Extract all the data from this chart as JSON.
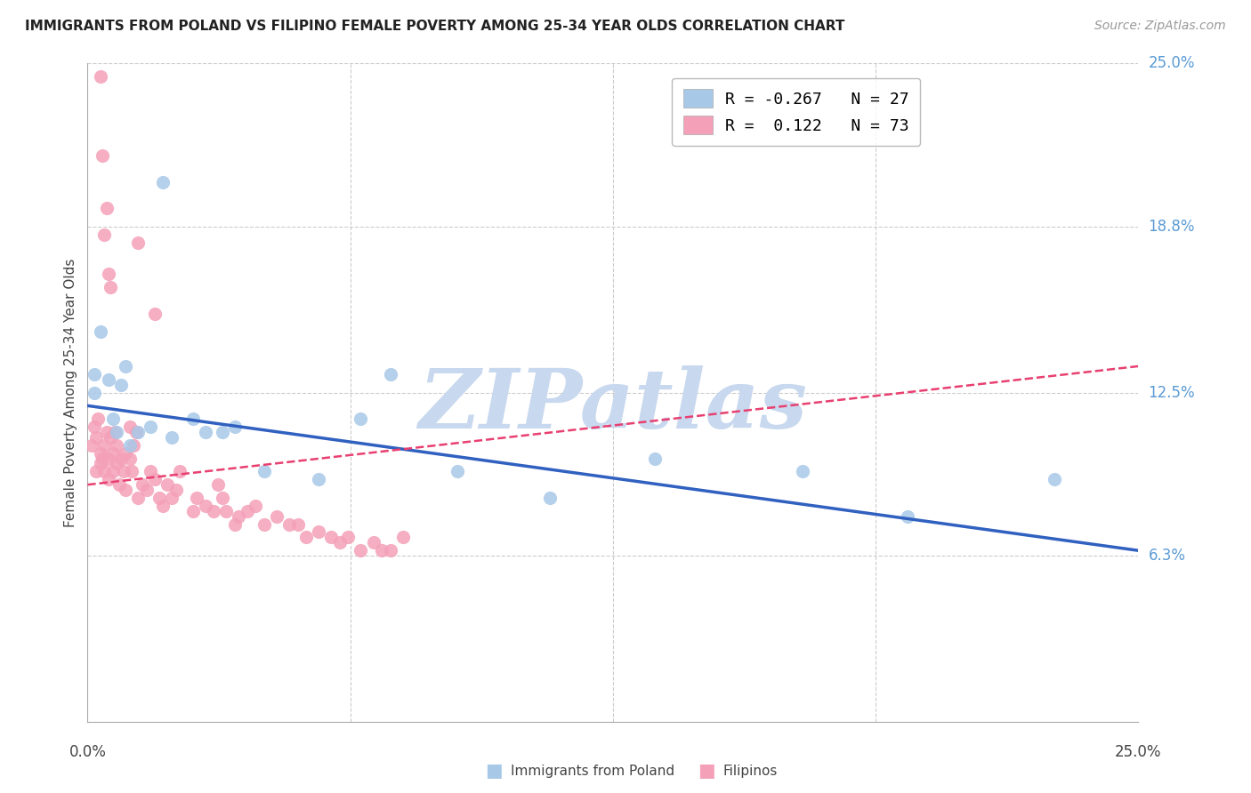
{
  "title": "IMMIGRANTS FROM POLAND VS FILIPINO FEMALE POVERTY AMONG 25-34 YEAR OLDS CORRELATION CHART",
  "source": "Source: ZipAtlas.com",
  "ylabel": "Female Poverty Among 25-34 Year Olds",
  "xlim": [
    0,
    25
  ],
  "ylim": [
    0,
    25
  ],
  "ytick_vals": [
    6.3,
    12.5,
    18.8,
    25.0
  ],
  "ytick_labels": [
    "6.3%",
    "12.5%",
    "18.8%",
    "25.0%"
  ],
  "legend_blue_r": "R = -0.267",
  "legend_blue_n": "N = 27",
  "legend_pink_r": "R =  0.122",
  "legend_pink_n": "N = 73",
  "label_blue": "Immigrants from Poland",
  "label_pink": "Filipinos",
  "color_blue": "#a8c8e8",
  "color_pink": "#f4a0b8",
  "color_blue_line": "#3060c0",
  "color_pink_line": "#e84070",
  "watermark_color": "#c8d8ee",
  "poland_x": [
    0.15,
    0.15,
    0.3,
    0.5,
    0.6,
    0.7,
    0.8,
    0.9,
    1.0,
    1.2,
    1.5,
    1.8,
    2.0,
    2.5,
    2.8,
    3.2,
    3.5,
    4.2,
    5.5,
    7.2,
    8.8,
    11.0,
    13.5,
    17.0,
    19.5,
    23.0,
    6.5
  ],
  "poland_y": [
    13.2,
    12.5,
    14.8,
    13.0,
    11.5,
    11.0,
    12.8,
    13.5,
    10.5,
    11.0,
    11.2,
    20.5,
    10.8,
    11.5,
    11.0,
    11.0,
    11.2,
    9.5,
    9.2,
    13.2,
    9.5,
    8.5,
    10.0,
    9.5,
    7.8,
    9.2,
    11.5
  ],
  "blue_line_x0": 0,
  "blue_line_y0": 12.0,
  "blue_line_x1": 25,
  "blue_line_y1": 6.5,
  "pink_line_x0": 0,
  "pink_line_y0": 9.0,
  "pink_line_x1": 25,
  "pink_line_y1": 13.5,
  "filipino_x": [
    0.1,
    0.15,
    0.2,
    0.2,
    0.25,
    0.3,
    0.3,
    0.35,
    0.4,
    0.4,
    0.45,
    0.5,
    0.5,
    0.55,
    0.6,
    0.6,
    0.65,
    0.7,
    0.7,
    0.75,
    0.8,
    0.85,
    0.9,
    0.9,
    1.0,
    1.0,
    1.05,
    1.1,
    1.15,
    1.2,
    1.3,
    1.4,
    1.5,
    1.6,
    1.7,
    1.8,
    1.9,
    2.0,
    2.1,
    2.2,
    2.5,
    2.6,
    2.8,
    3.0,
    3.1,
    3.2,
    3.3,
    3.5,
    3.6,
    3.8,
    4.0,
    4.2,
    4.5,
    4.8,
    5.0,
    5.2,
    5.5,
    5.8,
    6.0,
    6.2,
    6.5,
    6.8,
    7.0,
    7.2,
    7.5,
    0.3,
    0.35,
    0.4,
    0.45,
    0.5,
    0.55,
    1.2,
    1.6
  ],
  "filipino_y": [
    10.5,
    11.2,
    10.8,
    9.5,
    11.5,
    10.2,
    9.8,
    10.0,
    9.5,
    10.5,
    11.0,
    10.0,
    9.2,
    10.8,
    9.5,
    10.2,
    11.0,
    9.8,
    10.5,
    9.0,
    10.0,
    9.5,
    10.2,
    8.8,
    11.2,
    10.0,
    9.5,
    10.5,
    11.0,
    8.5,
    9.0,
    8.8,
    9.5,
    9.2,
    8.5,
    8.2,
    9.0,
    8.5,
    8.8,
    9.5,
    8.0,
    8.5,
    8.2,
    8.0,
    9.0,
    8.5,
    8.0,
    7.5,
    7.8,
    8.0,
    8.2,
    7.5,
    7.8,
    7.5,
    7.5,
    7.0,
    7.2,
    7.0,
    6.8,
    7.0,
    6.5,
    6.8,
    6.5,
    6.5,
    7.0,
    24.5,
    21.5,
    18.5,
    19.5,
    17.0,
    16.5,
    18.2,
    15.5
  ]
}
